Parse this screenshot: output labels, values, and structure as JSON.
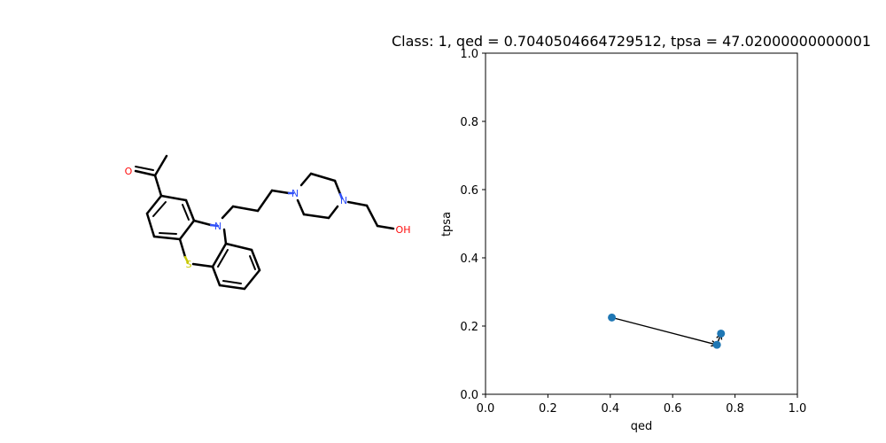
{
  "molecule": {
    "atom_labels": {
      "o_ketone": "O",
      "n_ring": "N",
      "s_ring": "S",
      "n_pip1": "N",
      "n_pip2": "N",
      "oh": "OH"
    },
    "colors": {
      "bond": "#000000",
      "oxygen": "#ff0d0d",
      "nitrogen": "#3050f8",
      "sulfur": "#c8c800"
    }
  },
  "chart_data": {
    "type": "scatter",
    "title": "Class: 1, qed = 0.7040504664729512, tpsa = 47.02000000000001",
    "xlabel": "qed",
    "ylabel": "tpsa",
    "xlim": [
      0.0,
      1.0
    ],
    "ylim": [
      0.0,
      1.0
    ],
    "xticks": [
      "0.0",
      "0.2",
      "0.4",
      "0.6",
      "0.8",
      "1.0"
    ],
    "yticks": [
      "0.0",
      "0.2",
      "0.4",
      "0.6",
      "0.8",
      "1.0"
    ],
    "points": [
      {
        "x": 0.405,
        "y": 0.225
      },
      {
        "x": 0.742,
        "y": 0.145
      },
      {
        "x": 0.755,
        "y": 0.178
      }
    ],
    "arrows": [
      {
        "from": [
          0.405,
          0.225
        ],
        "to": [
          0.742,
          0.145
        ]
      },
      {
        "from": [
          0.742,
          0.145
        ],
        "to": [
          0.755,
          0.178
        ]
      }
    ],
    "grid": false,
    "marker_color": "#1f77b4"
  }
}
